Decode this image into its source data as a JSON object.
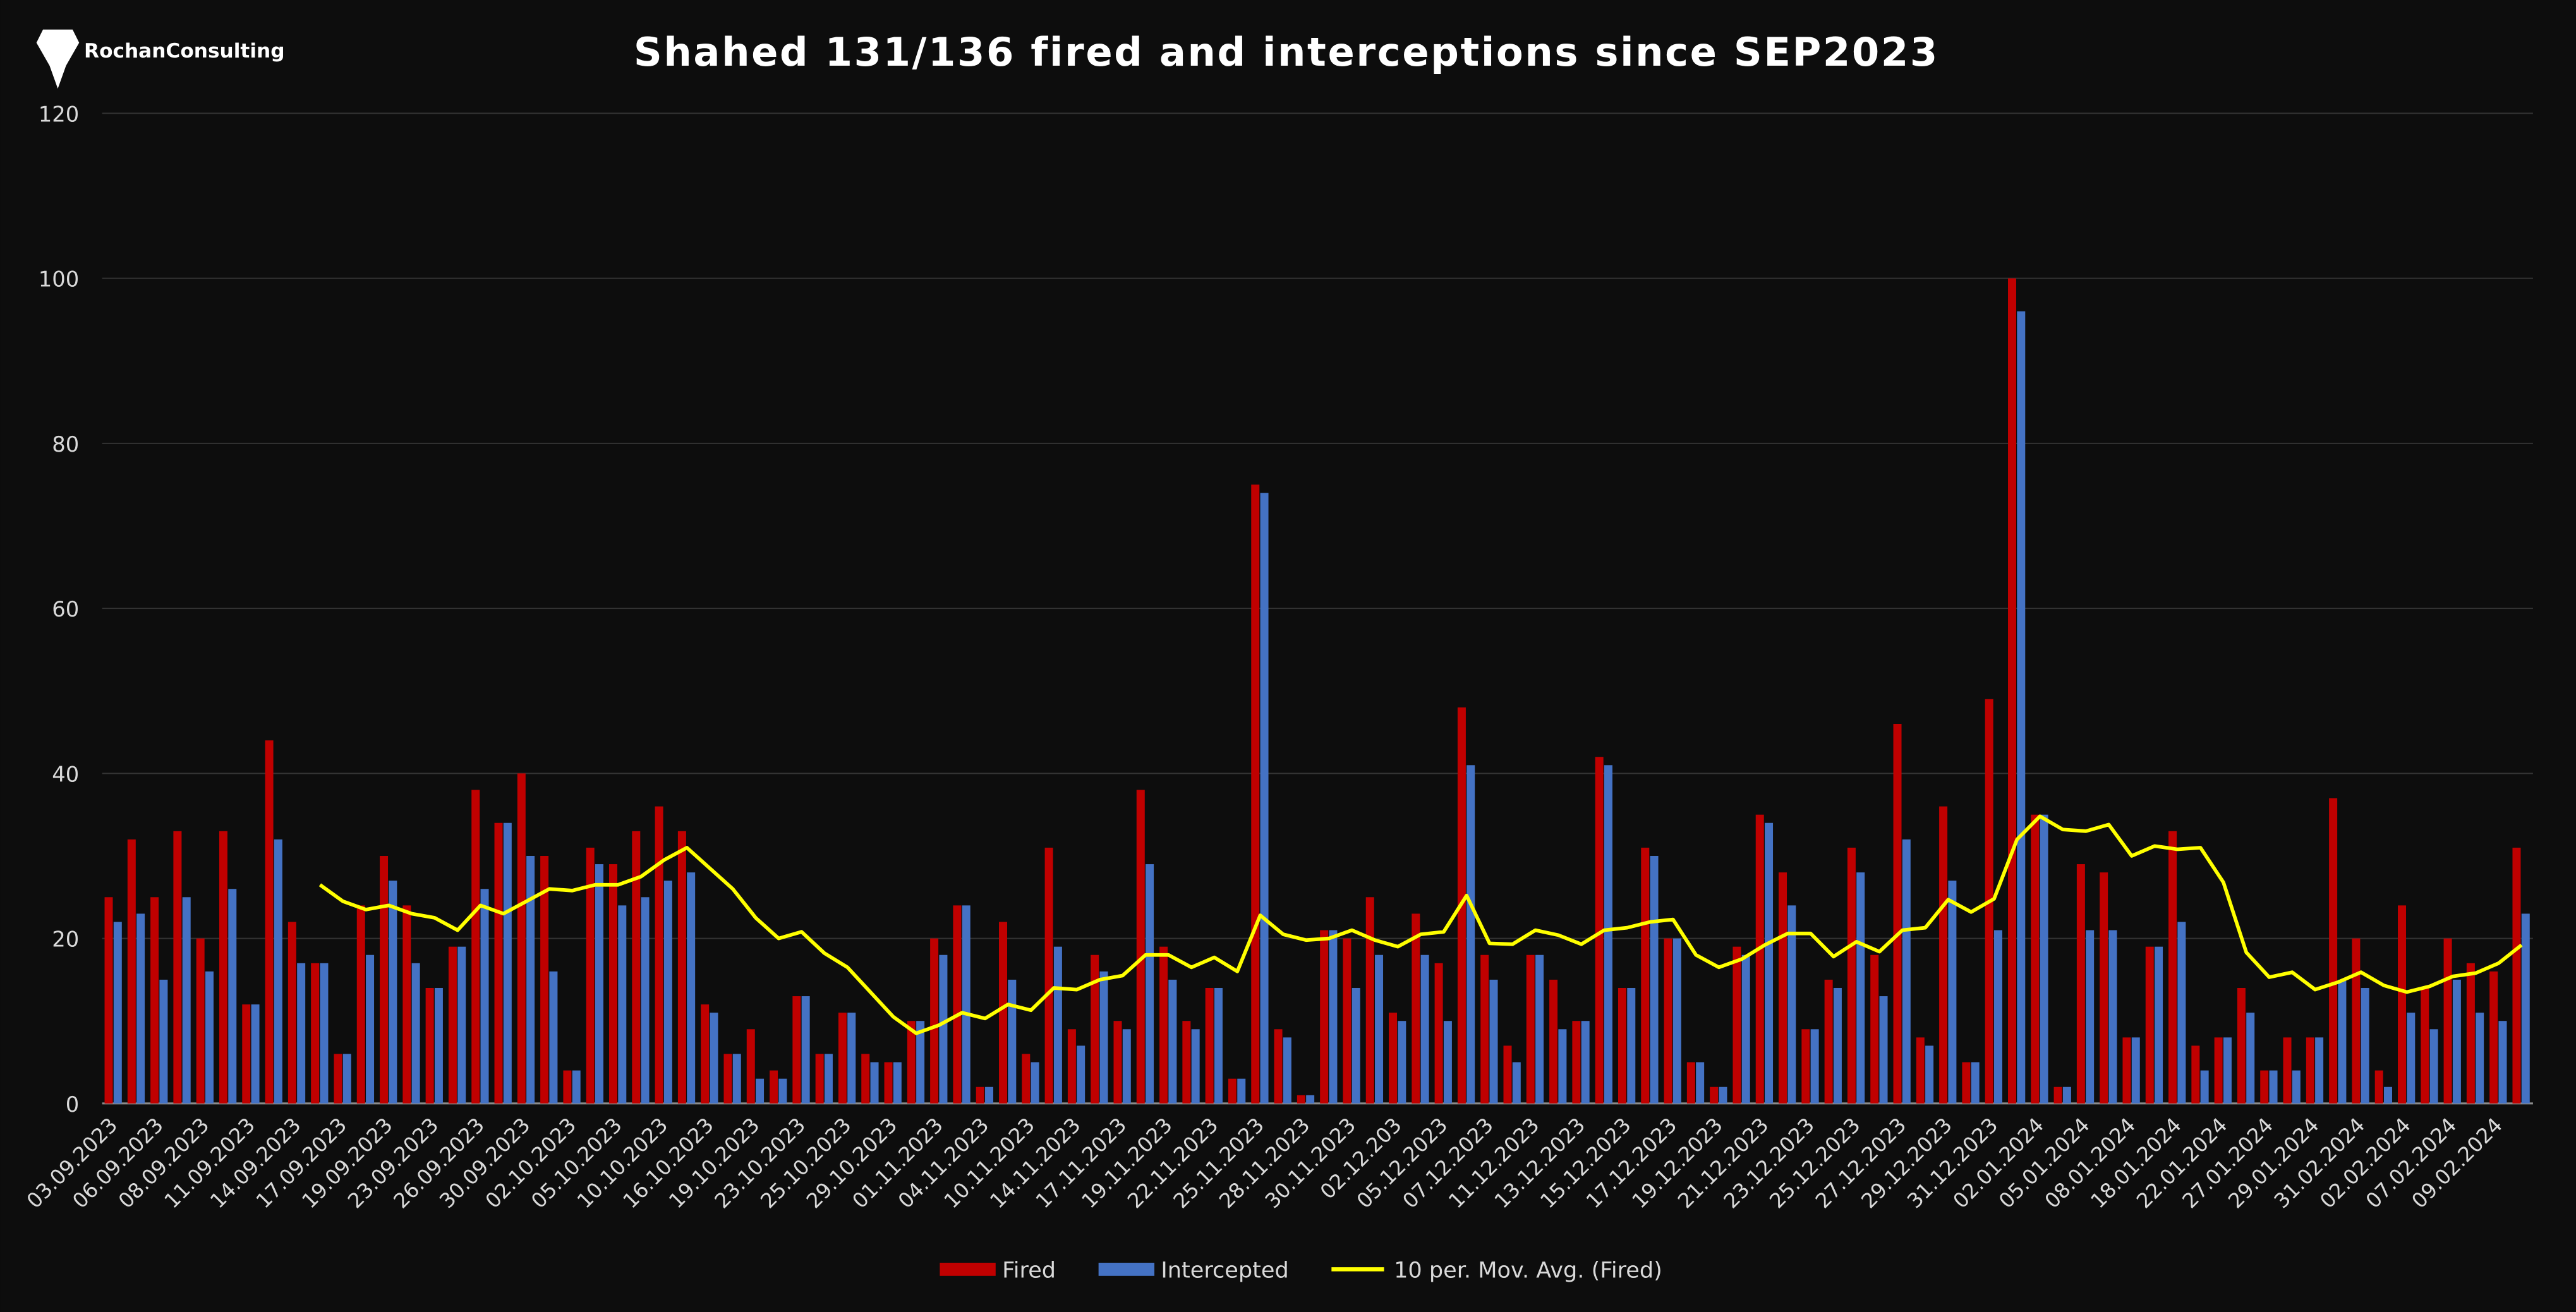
{
  "logo": "RochanConsulting",
  "chart_data": {
    "type": "bar",
    "title": "Shahed 131/136 fired and interceptions since SEP2023",
    "categories": [
      "03.09.2023",
      null,
      "06.09.2023",
      null,
      "08.09.2023",
      null,
      "11.09.2023",
      null,
      "14.09.2023",
      null,
      "17.09.2023",
      null,
      "19.09.2023",
      null,
      "23.09.2023",
      null,
      "26.09.2023",
      null,
      "30.09.2023",
      null,
      "02.10.2023",
      null,
      "05.10.2023",
      null,
      "10.10.2023",
      null,
      "16.10.2023",
      null,
      "19.10.2023",
      null,
      "23.10.2023",
      null,
      "25.10.2023",
      null,
      "29.10.2023",
      null,
      "01.11.2023",
      null,
      "04.11.2023",
      null,
      "10.11.2023",
      null,
      "14.11.2023",
      null,
      "17.11.2023",
      null,
      "19.11.2023",
      null,
      "22.11.2023",
      null,
      "25.11.2023",
      null,
      "28.11.2023",
      null,
      "30.11.2023",
      null,
      "02.12.203",
      null,
      "05.12.2023",
      null,
      "07.12.2023",
      null,
      "11.12.2023",
      null,
      "13.12.2023",
      null,
      "15.12.2023",
      null,
      "17.12.2023",
      null,
      "19.12.2023",
      null,
      "21.12.2023",
      null,
      "23.12.2023",
      null,
      "25.12.2023",
      null,
      "27.12.2023",
      null,
      "29.12.2023",
      null,
      "31.12.2023",
      null,
      "02.01.2024",
      null,
      "05.01.2024",
      null,
      "08.01.2024",
      null,
      "18.01.2024",
      null,
      "22.01.2024",
      null,
      "27.01.2024",
      null,
      "29.01.2024",
      null,
      "31.02.2024",
      null,
      "02.02.2024",
      null,
      "07.02.2024",
      null,
      "09.02.2024",
      null
    ],
    "series": [
      {
        "name": "Fired",
        "color": "#c00000",
        "values": [
          25,
          32,
          25,
          33,
          20,
          33,
          12,
          44,
          22,
          17,
          6,
          24,
          30,
          24,
          14,
          19,
          38,
          34,
          40,
          30,
          4,
          31,
          29,
          33,
          36,
          33,
          12,
          6,
          9,
          4,
          13,
          6,
          11,
          6,
          5,
          10,
          20,
          24,
          2,
          22,
          6,
          31,
          9,
          18,
          10,
          38,
          19,
          10,
          14,
          3,
          75,
          9,
          1,
          21,
          20,
          25,
          11,
          23,
          17,
          48,
          18,
          7,
          18,
          15,
          10,
          42,
          14,
          31,
          20,
          5,
          2,
          19,
          35,
          28,
          9,
          15,
          31,
          18,
          46,
          8,
          36,
          5,
          49,
          100,
          35,
          2,
          29,
          28,
          8,
          19,
          33,
          7,
          8,
          14,
          4,
          8,
          8,
          37,
          20,
          4,
          24,
          14,
          20,
          17,
          16,
          31
        ]
      },
      {
        "name": "Intercepted",
        "color": "#4472c4",
        "values": [
          22,
          23,
          15,
          25,
          16,
          26,
          12,
          32,
          17,
          17,
          6,
          18,
          27,
          17,
          14,
          19,
          26,
          34,
          30,
          16,
          4,
          29,
          24,
          25,
          27,
          28,
          11,
          6,
          3,
          3,
          13,
          6,
          11,
          5,
          5,
          10,
          18,
          24,
          2,
          15,
          5,
          19,
          7,
          16,
          9,
          29,
          15,
          9,
          14,
          3,
          74,
          8,
          1,
          21,
          14,
          18,
          10,
          18,
          10,
          41,
          15,
          5,
          18,
          9,
          10,
          41,
          14,
          30,
          20,
          5,
          2,
          18,
          34,
          24,
          9,
          14,
          28,
          13,
          32,
          7,
          27,
          5,
          21,
          96,
          35,
          2,
          21,
          21,
          8,
          19,
          22,
          4,
          8,
          11,
          4,
          4,
          8,
          15,
          14,
          2,
          11,
          9,
          15,
          11,
          10,
          23
        ]
      },
      {
        "name": "10 per. Mov. Avg. (Fired)",
        "color": "#ffff00",
        "type": "line",
        "values": [
          null,
          null,
          null,
          null,
          null,
          null,
          null,
          null,
          null,
          26.5,
          24.5,
          23.5,
          24,
          23,
          22.5,
          21,
          24,
          23,
          24.5,
          26,
          25.8,
          26.5,
          26.5,
          27.5,
          29.5,
          31,
          28.5,
          26,
          22.5,
          20,
          20.8,
          18.2,
          16.5,
          13.5,
          10.5,
          8.5,
          9.5,
          11,
          10.3,
          12,
          11.3,
          14,
          13.8,
          15,
          15.5,
          18,
          18,
          16.5,
          17.7,
          16,
          22.8,
          20.5,
          19.8,
          20,
          21,
          19.8,
          19,
          20.5,
          20.8,
          25.2,
          19.4,
          19.3,
          21,
          20.4,
          19.3,
          21,
          21.3,
          22,
          22.3,
          18,
          16.5,
          17.5,
          19.2,
          20.6,
          20.6,
          17.8,
          19.6,
          18.4,
          21,
          21.3,
          24.7,
          23.2,
          24.8,
          32,
          34.8,
          33.2,
          33,
          33.8,
          30,
          31.2,
          30.8,
          31,
          26.8,
          18.3,
          15.3,
          15.9,
          13.8,
          14.7,
          15.9,
          14.3,
          13.5,
          14.2,
          15.4,
          15.8,
          17,
          19.2
        ]
      }
    ],
    "ylim": [
      0,
      120
    ],
    "yticks": [
      0,
      20,
      40,
      60,
      80,
      100,
      120
    ],
    "grid": true,
    "legend": "bottom"
  }
}
